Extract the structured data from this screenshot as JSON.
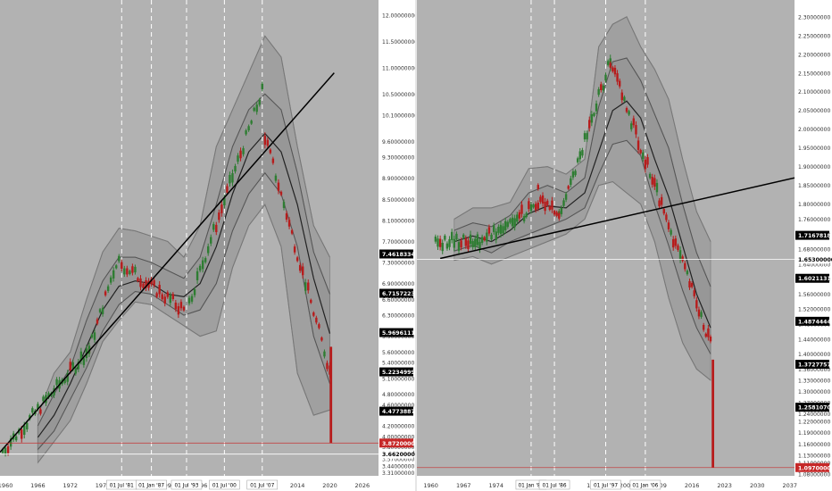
{
  "colors": {
    "plot_bg": "#b2b2b2",
    "band_fill": "#9a9a9a",
    "band_edge": "#8a8a8a",
    "bull": "#2e7d32",
    "bear": "#b71c1c",
    "trend": "#000000",
    "vline": "#ffffff",
    "label_bg": "#000000",
    "label_text": "#ffffff",
    "last_price": "#c62828",
    "axis_text": "#333333"
  },
  "chart_data": [
    {
      "type": "candlestick",
      "x_ticks": [
        "1960",
        "1966",
        "1972",
        "1978",
        "1984",
        "1990",
        "1996",
        "2002",
        "2008",
        "2014",
        "2020",
        "2026"
      ],
      "x_range": [
        1959,
        2029
      ],
      "y_range": [
        3.25,
        12.25
      ],
      "y_ticks": [
        "12.00000000",
        "11.50000000",
        "11.00000000",
        "10.50000000",
        "10.10000000",
        "9.60000000",
        "9.30000000",
        "8.90000000",
        "8.50000000",
        "8.10000000",
        "7.70000000",
        "7.30000000",
        "6.90000000",
        "6.60000000",
        "6.30000000",
        "5.90000000",
        "5.60000000",
        "5.40000000",
        "5.10000000",
        "4.80000000",
        "4.60000000",
        "4.20000000",
        "4.00000000",
        "3.80000000",
        "3.70000000",
        "3.57000000",
        "3.44000000",
        "3.31000000"
      ],
      "vlines": [
        {
          "x": 1981.5,
          "label": "01 Jul '81"
        },
        {
          "x": 1987.0,
          "label": "01 Jan '87"
        },
        {
          "x": 1993.5,
          "label": "01 Jul '93"
        },
        {
          "x": 2000.5,
          "label": "01 Jul '00"
        },
        {
          "x": 2007.5,
          "label": "01 Jul '07"
        }
      ],
      "price_labels": [
        {
          "value": 7.46183349,
          "text": "7.46183349"
        },
        {
          "value": 6.7157223,
          "text": "6.71572230"
        },
        {
          "value": 5.96961111,
          "text": "5.96961111"
        },
        {
          "value": 5.22349992,
          "text": "5.22349992"
        },
        {
          "value": 4.47738874,
          "text": "4.47738874"
        }
      ],
      "last_price": {
        "value": 3.872,
        "text": "3.87200000"
      },
      "ref_price": {
        "value": 3.662,
        "text": "3.66200000"
      },
      "trendline": [
        [
          1959.0,
          3.7
        ],
        [
          2020.8,
          10.9
        ]
      ],
      "band_mid": [
        [
          1966,
          3.98
        ],
        [
          1969,
          4.4
        ],
        [
          1972,
          5.0
        ],
        [
          1975,
          5.7
        ],
        [
          1978,
          6.4
        ],
        [
          1981,
          6.85
        ],
        [
          1984,
          6.95
        ],
        [
          1987,
          6.9
        ],
        [
          1990,
          6.7
        ],
        [
          1993,
          6.65
        ],
        [
          1996,
          6.9
        ],
        [
          1999,
          7.6
        ],
        [
          2002,
          8.6
        ],
        [
          2005,
          9.4
        ],
        [
          2008,
          9.75
        ],
        [
          2011,
          9.4
        ],
        [
          2014,
          8.4
        ],
        [
          2017,
          7.0
        ],
        [
          2020,
          5.95
        ]
      ],
      "band_upper": [
        [
          1966,
          4.4
        ],
        [
          1969,
          5.2
        ],
        [
          1972,
          5.6
        ],
        [
          1975,
          6.6
        ],
        [
          1978,
          7.5
        ],
        [
          1981,
          7.95
        ],
        [
          1984,
          7.9
        ],
        [
          1987,
          7.8
        ],
        [
          1990,
          7.7
        ],
        [
          1993,
          7.4
        ],
        [
          1996,
          8.0
        ],
        [
          1999,
          9.5
        ],
        [
          2002,
          10.2
        ],
        [
          2005,
          10.9
        ],
        [
          2008,
          11.6
        ],
        [
          2011,
          11.2
        ],
        [
          2014,
          9.5
        ],
        [
          2017,
          8.0
        ],
        [
          2020,
          7.4
        ]
      ],
      "band_lower": [
        [
          1966,
          3.5
        ],
        [
          1969,
          3.9
        ],
        [
          1972,
          4.3
        ],
        [
          1975,
          5.0
        ],
        [
          1978,
          5.8
        ],
        [
          1981,
          6.2
        ],
        [
          1984,
          6.55
        ],
        [
          1987,
          6.5
        ],
        [
          1990,
          6.3
        ],
        [
          1993,
          6.1
        ],
        [
          1996,
          5.9
        ],
        [
          1999,
          6.0
        ],
        [
          2002,
          7.2
        ],
        [
          2005,
          8.0
        ],
        [
          2008,
          8.4
        ],
        [
          2011,
          7.6
        ],
        [
          2014,
          5.2
        ],
        [
          2017,
          4.4
        ],
        [
          2020,
          4.5
        ]
      ],
      "band_inner_upper": [
        [
          1966,
          4.2
        ],
        [
          1969,
          4.8
        ],
        [
          1972,
          5.3
        ],
        [
          1975,
          6.2
        ],
        [
          1978,
          6.95
        ],
        [
          1981,
          7.4
        ],
        [
          1984,
          7.4
        ],
        [
          1987,
          7.3
        ],
        [
          1990,
          7.15
        ],
        [
          1993,
          7.0
        ],
        [
          1996,
          7.4
        ],
        [
          1999,
          8.4
        ],
        [
          2002,
          9.5
        ],
        [
          2005,
          10.2
        ],
        [
          2008,
          10.5
        ],
        [
          2011,
          10.2
        ],
        [
          2014,
          9.0
        ],
        [
          2017,
          7.5
        ],
        [
          2020,
          6.7
        ]
      ],
      "band_inner_lower": [
        [
          1966,
          3.75
        ],
        [
          1969,
          4.1
        ],
        [
          1972,
          4.7
        ],
        [
          1975,
          5.3
        ],
        [
          1978,
          6.0
        ],
        [
          1981,
          6.5
        ],
        [
          1984,
          6.75
        ],
        [
          1987,
          6.7
        ],
        [
          1990,
          6.5
        ],
        [
          1993,
          6.3
        ],
        [
          1996,
          6.4
        ],
        [
          1999,
          6.9
        ],
        [
          2002,
          7.9
        ],
        [
          2005,
          8.6
        ],
        [
          2008,
          9.0
        ],
        [
          2011,
          8.6
        ],
        [
          2014,
          7.6
        ],
        [
          2017,
          5.9
        ],
        [
          2020,
          5.0
        ]
      ],
      "candles_bull_segments": [
        [
          1959.5,
          1975.5,
          3.72,
          5.65
        ],
        [
          1975.5,
          1980.5,
          5.65,
          7.3
        ],
        [
          1994.0,
          2007.5,
          6.55,
          10.55
        ]
      ],
      "candles_bear_segments": [
        [
          1981.0,
          1993.0,
          7.3,
          6.4
        ],
        [
          2008.0,
          2020.0,
          9.7,
          5.25
        ]
      ],
      "final_drop": {
        "x": 2020.2,
        "open": 5.7,
        "close": 3.872
      }
    },
    {
      "type": "candlestick",
      "x_ticks": [
        "1960",
        "1967",
        "1974",
        "1981",
        "1988",
        "1995",
        "2002",
        "2009",
        "2016",
        "2023",
        "2030",
        "2037"
      ],
      "x_range": [
        1957,
        2038
      ],
      "y_range": [
        1.075,
        2.34
      ],
      "y_ticks": [
        "2.30000000",
        "2.25000000",
        "2.20000000",
        "2.15000000",
        "2.10000000",
        "2.05000000",
        "2.00000000",
        "1.95000000",
        "1.90000000",
        "1.85000000",
        "1.80000000",
        "1.76000000",
        "1.72000000",
        "1.68000000",
        "1.64000000",
        "1.60000000",
        "1.56000000",
        "1.52000000",
        "1.48000000",
        "1.44000000",
        "1.40000000",
        "1.36000000",
        "1.33000000",
        "1.30000000",
        "1.27000000",
        "1.24000000",
        "1.22000000",
        "1.19000000",
        "1.16000000",
        "1.13000000",
        "1.11000000",
        "1.08000000"
      ],
      "vlines": [
        {
          "x": 1981.5,
          "label": "01 Jan '81"
        },
        {
          "x": 1986.5,
          "label": "01 Jul '86"
        },
        {
          "x": 1997.5,
          "label": "01 Jul '97"
        },
        {
          "x": 2006.0,
          "label": "01 Jan '06"
        }
      ],
      "price_labels": [
        {
          "value": 1.71678187,
          "text": "1.71678187"
        },
        {
          "value": 1.60211316,
          "text": "1.60211316"
        },
        {
          "value": 1.48744444,
          "text": "1.48744444"
        },
        {
          "value": 1.37277573,
          "text": "1.37277573"
        },
        {
          "value": 1.25810702,
          "text": "1.25810702"
        }
      ],
      "last_price": {
        "value": 1.097,
        "text": "1.09700000"
      },
      "ref_price": {
        "value": 1.653,
        "text": "1.65300000"
      },
      "trendline": [
        [
          1962.0,
          1.655
        ],
        [
          2038.0,
          1.87
        ]
      ],
      "band_mid": [
        [
          1965,
          1.7
        ],
        [
          1969,
          1.715
        ],
        [
          1973,
          1.7
        ],
        [
          1977,
          1.73
        ],
        [
          1981,
          1.775
        ],
        [
          1985,
          1.795
        ],
        [
          1989,
          1.79
        ],
        [
          1993,
          1.83
        ],
        [
          1996,
          1.94
        ],
        [
          1999,
          2.05
        ],
        [
          2002,
          2.075
        ],
        [
          2005,
          2.03
        ],
        [
          2008,
          1.92
        ],
        [
          2011,
          1.82
        ],
        [
          2014,
          1.69
        ],
        [
          2017,
          1.56
        ],
        [
          2020,
          1.47
        ]
      ],
      "band_upper": [
        [
          1965,
          1.76
        ],
        [
          1969,
          1.79
        ],
        [
          1973,
          1.79
        ],
        [
          1977,
          1.805
        ],
        [
          1981,
          1.895
        ],
        [
          1985,
          1.9
        ],
        [
          1989,
          1.88
        ],
        [
          1993,
          1.92
        ],
        [
          1996,
          2.22
        ],
        [
          1999,
          2.28
        ],
        [
          2002,
          2.3
        ],
        [
          2005,
          2.22
        ],
        [
          2008,
          2.16
        ],
        [
          2011,
          2.08
        ],
        [
          2014,
          1.92
        ],
        [
          2017,
          1.78
        ],
        [
          2020,
          1.7
        ]
      ],
      "band_lower": [
        [
          1965,
          1.65
        ],
        [
          1969,
          1.66
        ],
        [
          1973,
          1.64
        ],
        [
          1977,
          1.66
        ],
        [
          1981,
          1.68
        ],
        [
          1985,
          1.7
        ],
        [
          1989,
          1.72
        ],
        [
          1993,
          1.76
        ],
        [
          1996,
          1.85
        ],
        [
          1999,
          1.86
        ],
        [
          2002,
          1.83
        ],
        [
          2005,
          1.8
        ],
        [
          2008,
          1.7
        ],
        [
          2011,
          1.55
        ],
        [
          2014,
          1.43
        ],
        [
          2017,
          1.36
        ],
        [
          2020,
          1.33
        ]
      ],
      "band_inner_upper": [
        [
          1965,
          1.73
        ],
        [
          1969,
          1.75
        ],
        [
          1973,
          1.74
        ],
        [
          1977,
          1.77
        ],
        [
          1981,
          1.83
        ],
        [
          1985,
          1.85
        ],
        [
          1989,
          1.83
        ],
        [
          1993,
          1.87
        ],
        [
          1996,
          2.06
        ],
        [
          1999,
          2.18
        ],
        [
          2002,
          2.19
        ],
        [
          2005,
          2.13
        ],
        [
          2008,
          2.04
        ],
        [
          2011,
          1.95
        ],
        [
          2014,
          1.8
        ],
        [
          2017,
          1.67
        ],
        [
          2020,
          1.58
        ]
      ],
      "band_inner_lower": [
        [
          1965,
          1.675
        ],
        [
          1969,
          1.69
        ],
        [
          1973,
          1.67
        ],
        [
          1977,
          1.7
        ],
        [
          1981,
          1.72
        ],
        [
          1985,
          1.74
        ],
        [
          1989,
          1.76
        ],
        [
          1993,
          1.79
        ],
        [
          1996,
          1.88
        ],
        [
          1999,
          1.96
        ],
        [
          2002,
          1.97
        ],
        [
          2005,
          1.93
        ],
        [
          2008,
          1.8
        ],
        [
          2011,
          1.69
        ],
        [
          2014,
          1.57
        ],
        [
          2017,
          1.47
        ],
        [
          2020,
          1.4
        ]
      ],
      "candles_bull_segments": [
        [
          1961.0,
          1970.0,
          1.7,
          1.7
        ],
        [
          1970.0,
          1983.0,
          1.7,
          1.8
        ],
        [
          1987.5,
          1998.5,
          1.76,
          2.18
        ]
      ],
      "candles_bear_segments": [
        [
          1983.0,
          1987.5,
          1.83,
          1.76
        ],
        [
          1998.5,
          2020.0,
          2.18,
          1.43
        ]
      ],
      "final_drop": {
        "x": 2020.5,
        "open": 1.385,
        "close": 1.097
      }
    }
  ]
}
